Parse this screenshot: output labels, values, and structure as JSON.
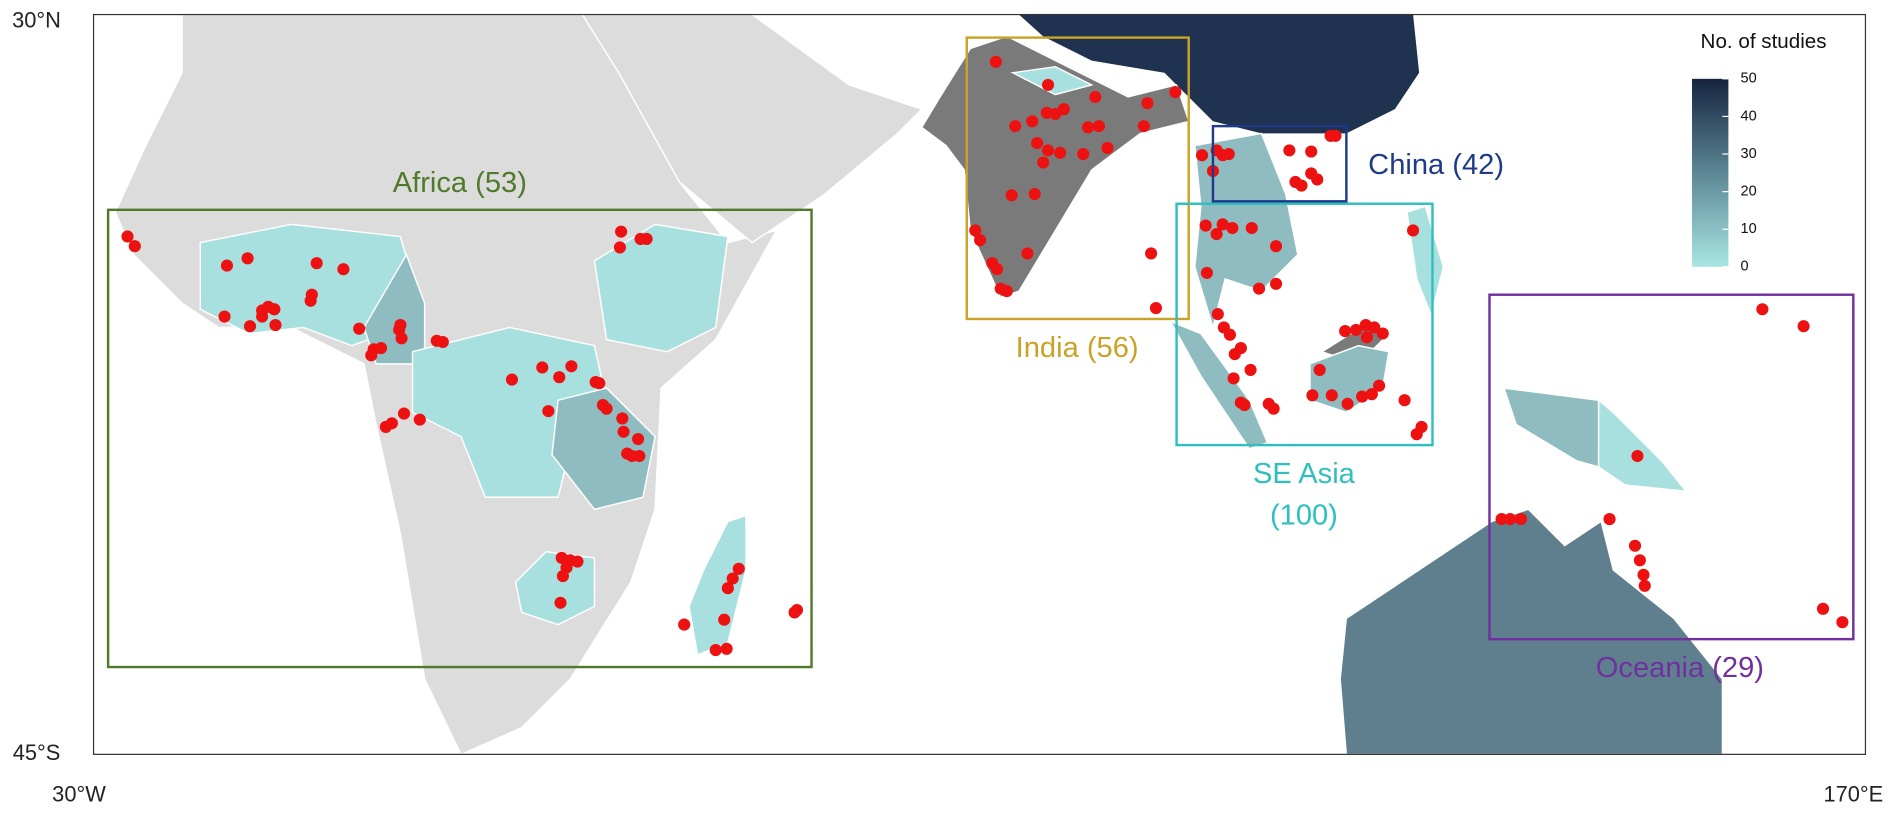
{
  "map": {
    "lat_labels": [
      "30°N",
      "45°S"
    ],
    "lon_labels": [
      "30°W",
      "170°E"
    ],
    "legend": {
      "title": "No. of studies",
      "range": [
        0,
        50
      ],
      "ticks": [
        0,
        10,
        20,
        30,
        40,
        50
      ]
    },
    "regions": [
      {
        "label": [
          "Africa (53)"
        ]
      },
      {
        "label": [
          "India (56)"
        ]
      },
      {
        "label": [
          "China (42)"
        ]
      },
      {
        "label": [
          "SE Asia",
          "(100)"
        ]
      },
      {
        "label": [
          "Oceania (29)"
        ]
      }
    ]
  }
}
